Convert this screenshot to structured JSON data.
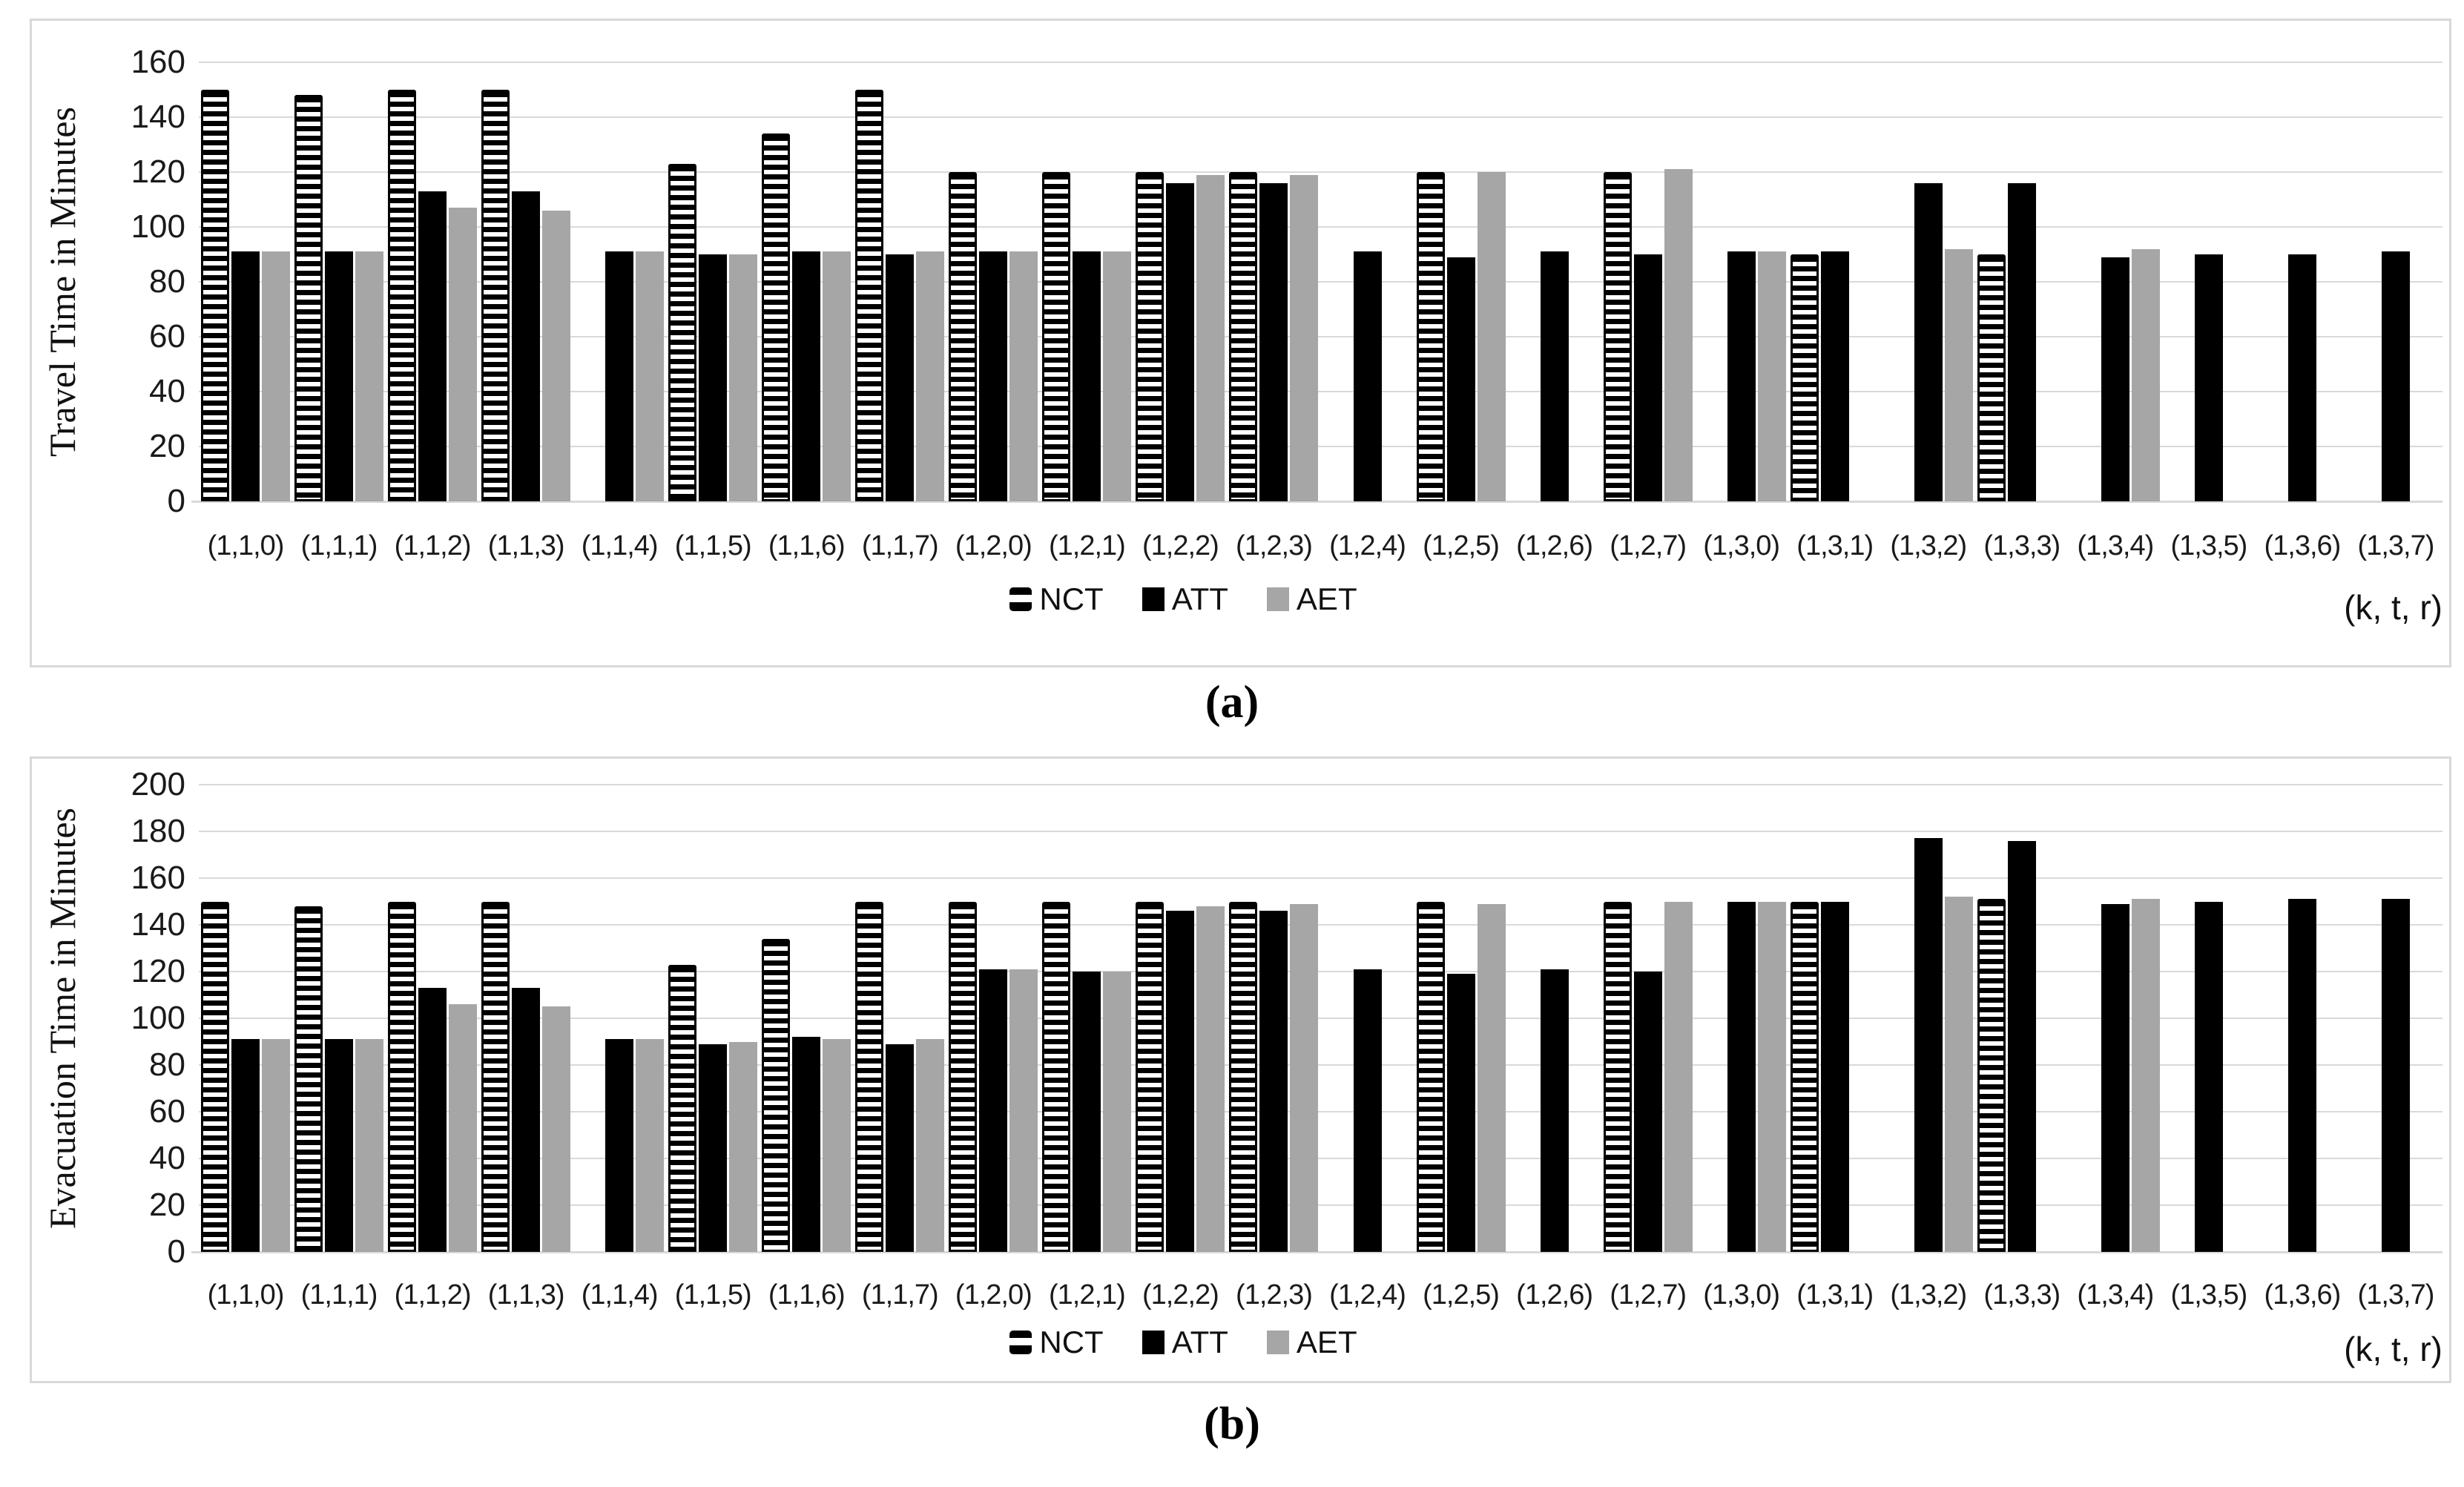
{
  "colors": {
    "att_series": "#000000",
    "aet_series": "#a6a6a6",
    "nct_stripe_bg": "#000000",
    "nct_stripe_fg": "#ffffff",
    "gridline": "#d9d9d9",
    "panel_border": "#d9d9d9"
  },
  "chart_data": [
    {
      "id": "a",
      "type": "bar",
      "caption": "(a)",
      "ylabel": "Travel Time in Minutes",
      "xlabel": "(k, t, r)",
      "ylim": [
        0,
        160
      ],
      "ytick_step": 20,
      "yticks": [
        0,
        20,
        40,
        60,
        80,
        100,
        120,
        140,
        160
      ],
      "grid": true,
      "legend_position": "bottom-center",
      "categories": [
        "(1,1,0)",
        "(1,1,1)",
        "(1,1,2)",
        "(1,1,3)",
        "(1,1,4)",
        "(1,1,5)",
        "(1,1,6)",
        "(1,1,7)",
        "(1,2,0)",
        "(1,2,1)",
        "(1,2,2)",
        "(1,2,3)",
        "(1,2,4)",
        "(1,2,5)",
        "(1,2,6)",
        "(1,2,7)",
        "(1,3,0)",
        "(1,3,1)",
        "(1,3,2)",
        "(1,3,3)",
        "(1,3,4)",
        "(1,3,5)",
        "(1,3,6)",
        "(1,3,7)"
      ],
      "series": [
        {
          "name": "NCT",
          "style": "striped",
          "values": [
            150,
            148,
            150,
            150,
            null,
            123,
            134,
            150,
            120,
            120,
            120,
            120,
            null,
            120,
            null,
            120,
            null,
            90,
            null,
            90,
            null,
            null,
            null,
            null
          ]
        },
        {
          "name": "ATT",
          "style": "solid",
          "color": "#000000",
          "values": [
            91,
            91,
            113,
            113,
            91,
            90,
            91,
            90,
            91,
            91,
            116,
            116,
            91,
            89,
            91,
            90,
            91,
            91,
            116,
            116,
            89,
            90,
            90,
            91
          ]
        },
        {
          "name": "AET",
          "style": "solid",
          "color": "#a6a6a6",
          "values": [
            91,
            91,
            107,
            106,
            91,
            90,
            91,
            91,
            91,
            91,
            119,
            119,
            null,
            120,
            null,
            121,
            91,
            null,
            92,
            null,
            92,
            null,
            null,
            null
          ]
        }
      ]
    },
    {
      "id": "b",
      "type": "bar",
      "caption": "(b)",
      "ylabel": "Evacuation Time in Minutes",
      "xlabel": "(k, t, r)",
      "ylim": [
        0,
        200
      ],
      "ytick_step": 20,
      "yticks": [
        0,
        20,
        40,
        60,
        80,
        100,
        120,
        140,
        160,
        180,
        200
      ],
      "grid": true,
      "legend_position": "bottom-center",
      "categories": [
        "(1,1,0)",
        "(1,1,1)",
        "(1,1,2)",
        "(1,1,3)",
        "(1,1,4)",
        "(1,1,5)",
        "(1,1,6)",
        "(1,1,7)",
        "(1,2,0)",
        "(1,2,1)",
        "(1,2,2)",
        "(1,2,3)",
        "(1,2,4)",
        "(1,2,5)",
        "(1,2,6)",
        "(1,2,7)",
        "(1,3,0)",
        "(1,3,1)",
        "(1,3,2)",
        "(1,3,3)",
        "(1,3,4)",
        "(1,3,5)",
        "(1,3,6)",
        "(1,3,7)"
      ],
      "series": [
        {
          "name": "NCT",
          "style": "striped",
          "values": [
            150,
            148,
            150,
            150,
            null,
            123,
            134,
            150,
            150,
            150,
            150,
            150,
            null,
            150,
            null,
            150,
            null,
            150,
            null,
            151,
            null,
            null,
            null,
            null
          ]
        },
        {
          "name": "ATT",
          "style": "solid",
          "color": "#000000",
          "values": [
            91,
            91,
            113,
            113,
            91,
            89,
            92,
            89,
            121,
            120,
            146,
            146,
            121,
            119,
            121,
            120,
            150,
            150,
            177,
            176,
            149,
            150,
            151,
            151
          ]
        },
        {
          "name": "AET",
          "style": "solid",
          "color": "#a6a6a6",
          "values": [
            91,
            91,
            106,
            105,
            91,
            90,
            91,
            91,
            121,
            120,
            148,
            149,
            null,
            149,
            null,
            150,
            150,
            null,
            152,
            null,
            151,
            null,
            null,
            null
          ]
        }
      ]
    }
  ]
}
